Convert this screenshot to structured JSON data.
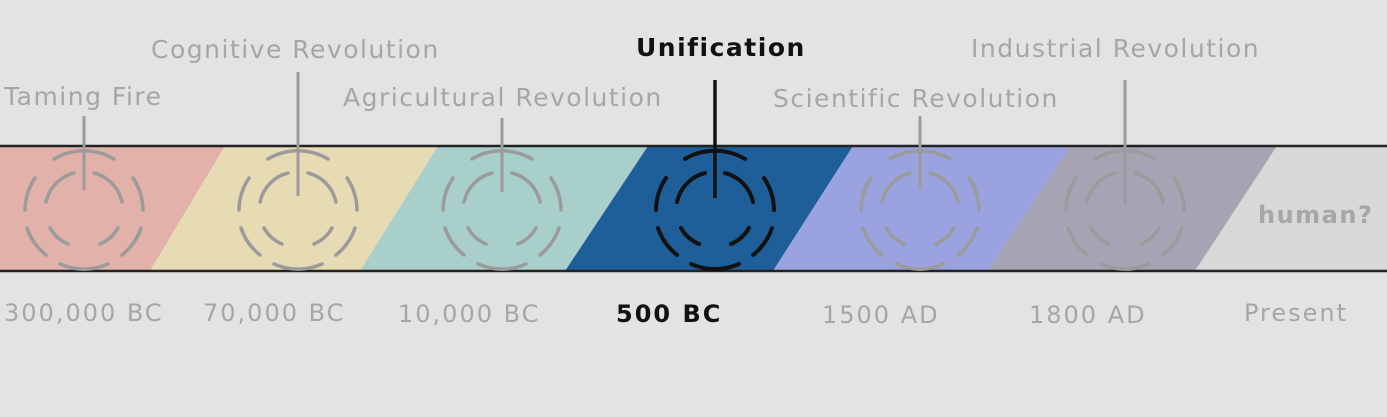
{
  "timeline": {
    "eras": [
      {
        "name": "Taming Fire",
        "date": "300,000 BC",
        "color": "#e2b2aa",
        "active": false
      },
      {
        "name": "Cognitive Revolution",
        "date": "70,000 BC",
        "color": "#e7dbb4",
        "active": false
      },
      {
        "name": "Agricultural Revolution",
        "date": "10,000 BC",
        "color": "#a9cfcb",
        "active": false
      },
      {
        "name": "Unification",
        "date": "500 BC",
        "color": "#1e5f99",
        "active": true
      },
      {
        "name": "Scientific Revolution",
        "date": "1500 AD",
        "color": "#9aa3e0",
        "active": false
      },
      {
        "name": "Industrial Revolution",
        "date": "1800 AD",
        "color": "#a6a3b4",
        "active": false
      }
    ],
    "present": {
      "date": "Present",
      "label": "human?",
      "color": "#d8d8d8"
    }
  },
  "colors": {
    "background": "#e3e3e3",
    "inactive_text": "#a6a6a6",
    "active_text": "#111111",
    "band_border": "#222222",
    "icon_inactive": "#9b9b9b",
    "icon_active": "#111111"
  }
}
